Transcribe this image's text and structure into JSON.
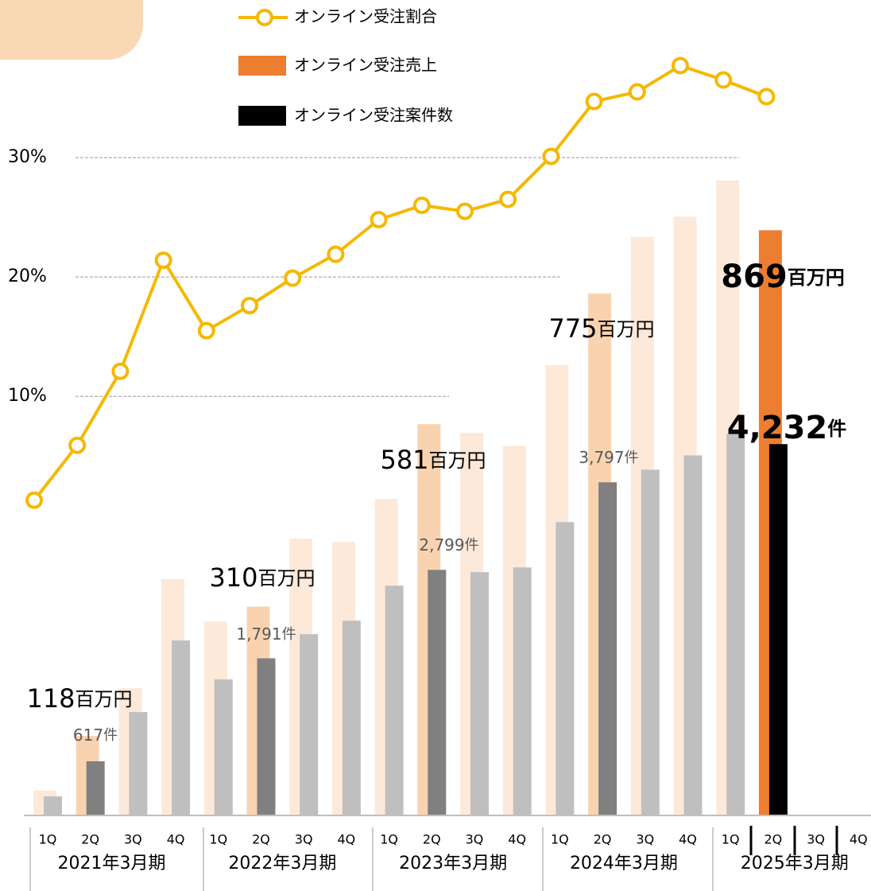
{
  "chart_data": {
    "type": "bar-line",
    "categories": [
      "1Q",
      "2Q",
      "3Q",
      "4Q",
      "1Q",
      "2Q",
      "3Q",
      "4Q",
      "1Q",
      "2Q",
      "3Q",
      "4Q",
      "1Q",
      "2Q",
      "3Q",
      "4Q",
      "1Q",
      "2Q",
      "3Q",
      "4Q"
    ],
    "groups": [
      "2021年3月期",
      "2022年3月期",
      "2023年3月期",
      "2024年3月期",
      "2025年3月期"
    ],
    "sales_unit": "百万円",
    "count_unit": "件",
    "ylim": [
      0,
      1140
    ],
    "count_lim": [
      0,
      8750
    ],
    "y2lim": [
      -25.1,
      39.2
    ],
    "y2ticks": [
      {
        "value": 10,
        "label": "10%"
      },
      {
        "value": 20,
        "label": "20%"
      },
      {
        "value": 30,
        "label": "30%"
      }
    ],
    "grid": true,
    "series": [
      {
        "name": "オンライン受注割合",
        "color": "#f5b800",
        "axis": "y2",
        "values": [
          1.3,
          5.9,
          12.1,
          21.4,
          15.5,
          17.6,
          19.9,
          21.9,
          24.8,
          26.0,
          25.5,
          26.5,
          30.1,
          34.7,
          35.5,
          37.7,
          36.5,
          35.1,
          null,
          null
        ]
      },
      {
        "name": "オンライン受注売上",
        "color": "#ed7d31",
        "values": [
          37,
          118,
          189,
          351,
          288,
          310,
          411,
          406,
          470,
          581,
          568,
          549,
          669,
          775,
          859,
          889,
          943,
          869,
          null,
          null
        ],
        "value_labels": [
          null,
          "118",
          null,
          null,
          null,
          "310",
          null,
          null,
          null,
          "581",
          null,
          null,
          null,
          "775",
          null,
          null,
          null,
          "869",
          null,
          null
        ],
        "colors": [
          "#fde9da",
          "#f9d3b0",
          "#fde9da",
          "#fde9da",
          "#fde9da",
          "#f9d3b0",
          "#fde9da",
          "#fde9da",
          "#fde9da",
          "#f9d3b0",
          "#fde9da",
          "#fde9da",
          "#fde9da",
          "#f9d3b0",
          "#fde9da",
          "#fde9da",
          "#fde9da",
          "#ed7d31",
          null,
          null
        ]
      },
      {
        "name": "オンライン受注案件数",
        "color": "#000000",
        "axis": "count",
        "values": [
          217,
          617,
          1178,
          1994,
          1550,
          1791,
          2066,
          2220,
          2619,
          2799,
          2773,
          2827,
          3343,
          3797,
          3941,
          4104,
          4349,
          4232,
          null,
          null
        ],
        "value_labels": [
          null,
          "617",
          null,
          null,
          null,
          "1,791",
          null,
          null,
          null,
          "2,799",
          null,
          null,
          null,
          "3,797",
          null,
          null,
          null,
          "4,232",
          null,
          null
        ],
        "colors": [
          "#bfbfbf",
          "#808080",
          "#bfbfbf",
          "#bfbfbf",
          "#bfbfbf",
          "#808080",
          "#bfbfbf",
          "#bfbfbf",
          "#bfbfbf",
          "#808080",
          "#bfbfbf",
          "#bfbfbf",
          "#bfbfbf",
          "#808080",
          "#bfbfbf",
          "#bfbfbf",
          "#bfbfbf",
          "#000000",
          null,
          null
        ]
      }
    ]
  }
}
